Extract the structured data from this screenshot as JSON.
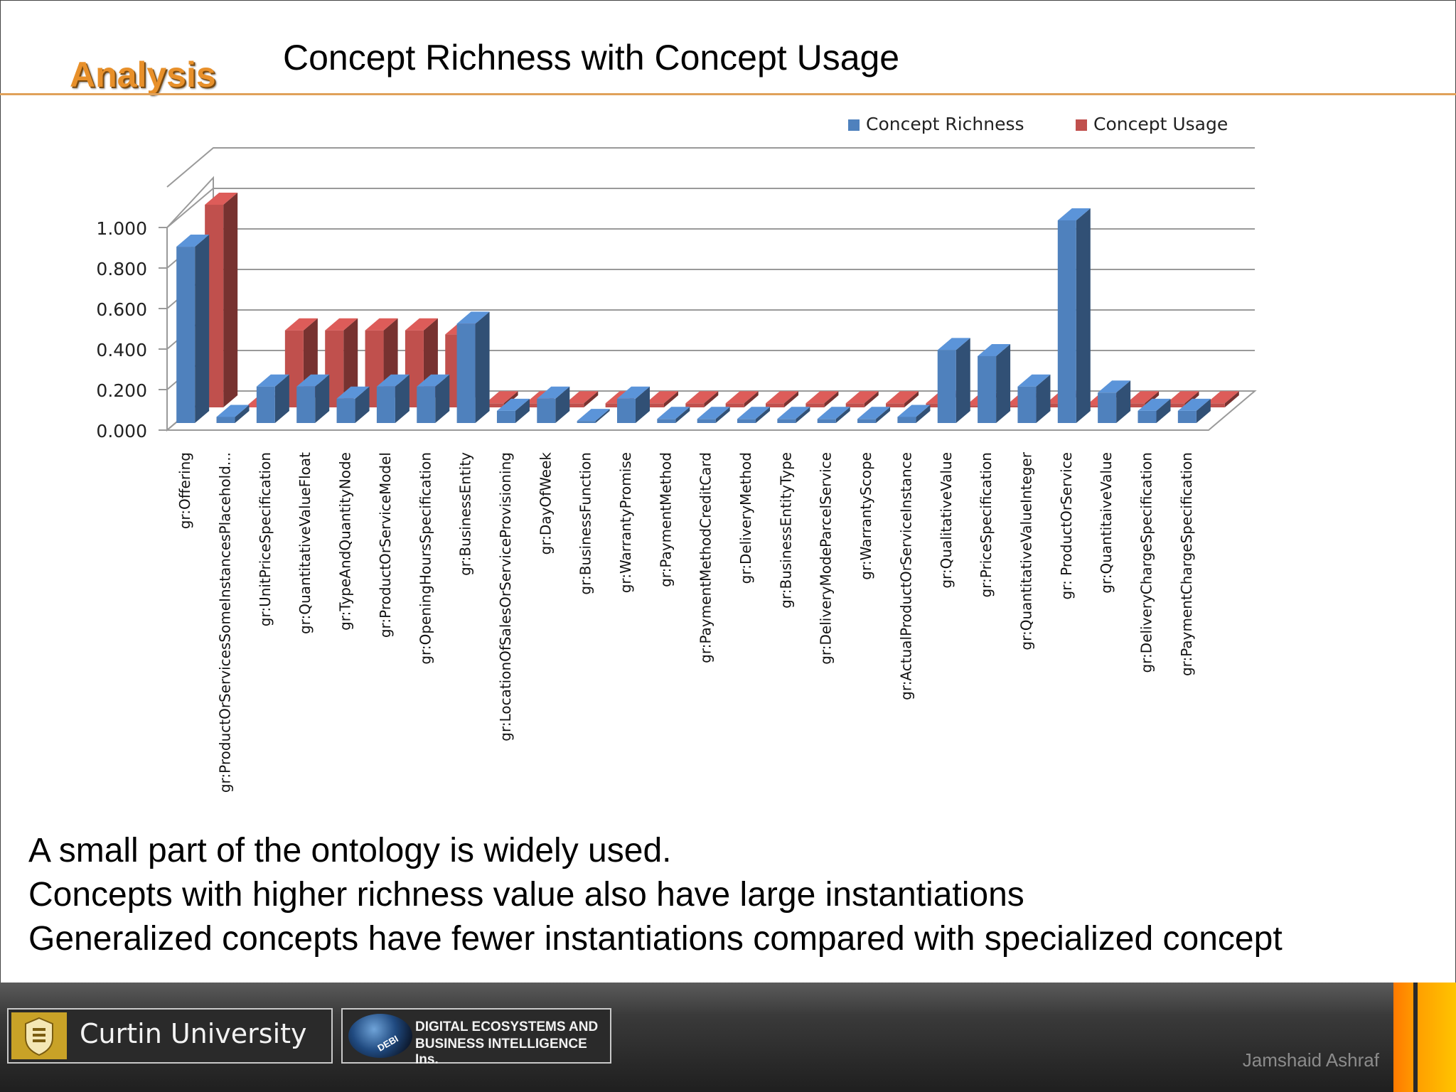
{
  "slide": {
    "section_label": "Analysis",
    "title": "Concept Richness with Concept Usage",
    "bullets": [
      "A small part of the ontology is widely used.",
      "Concepts with higher richness value also have large instantiations",
      "Generalized concepts have fewer instantiations compared with specialized concept"
    ]
  },
  "footer": {
    "university": "Curtin University",
    "lab_line1": "DIGITAL ECOSYSTEMS AND",
    "lab_line2": "BUSINESS INTELLIGENCE Ins.",
    "lab_logo_text": "DEBI",
    "author": "Jamshaid Ashraf"
  },
  "colors": {
    "richness": "#4f81bd",
    "usage": "#c0504d",
    "accent": "#e8902a"
  },
  "chart_data": {
    "type": "bar",
    "style": "3d-clustered",
    "title": "",
    "xlabel": "",
    "ylabel": "",
    "ylim": [
      0,
      1
    ],
    "yticks": [
      "0.000",
      "0.200",
      "0.400",
      "0.600",
      "0.800",
      "1.000"
    ],
    "grid": true,
    "legend_position": "top-right",
    "categories": [
      "gr:Offering",
      "gr:ProductOrServicesSomeInstancesPlacehold...",
      "gr:UnitPriceSpecification",
      "gr:QuantitativeValueFloat",
      "gr:TypeAndQuantityNode",
      "gr:ProductOrServiceModel",
      "gr:OpeningHoursSpecification",
      "gr:BusinessEntity",
      "gr:LocationOfSalesOrServiceProvisioning",
      "gr:DayOfWeek",
      "gr:BusinessFunction",
      "gr:WarrantyPromise",
      "gr:PaymentMethod",
      "gr:PaymentMethodCreditCard",
      "gr:DeliveryMethod",
      "gr:BusinessEntityType",
      "gr:DeliveryModeParcelService",
      "gr:WarrantyScope",
      "gr:ActualProductOrServiceInstance",
      "gr:QualitativeValue",
      "gr:PriceSpecification",
      "gr:QuantitativeValueInteger",
      "gr: ProductOrService",
      "gr:QuantitaiveValue",
      "gr:DeliveryChargeSpecification",
      "gr:PaymentChargeSpecification"
    ],
    "series": [
      {
        "name": "Concept Richness",
        "values": [
          0.87,
          0.03,
          0.18,
          0.18,
          0.12,
          0.18,
          0.18,
          0.49,
          0.06,
          0.12,
          0.01,
          0.12,
          0.02,
          0.02,
          0.02,
          0.02,
          0.02,
          0.02,
          0.03,
          0.36,
          0.33,
          0.18,
          1.0,
          0.15,
          0.06,
          0.06
        ]
      },
      {
        "name": "Concept Usage",
        "values": [
          1.0,
          0.0,
          0.38,
          0.38,
          0.38,
          0.38,
          0.36,
          0.02,
          0.02,
          0.02,
          0.02,
          0.02,
          0.02,
          0.02,
          0.02,
          0.02,
          0.02,
          0.02,
          0.02,
          0.01,
          0.01,
          0.02,
          0.01,
          0.02,
          0.02,
          0.02
        ]
      }
    ]
  }
}
